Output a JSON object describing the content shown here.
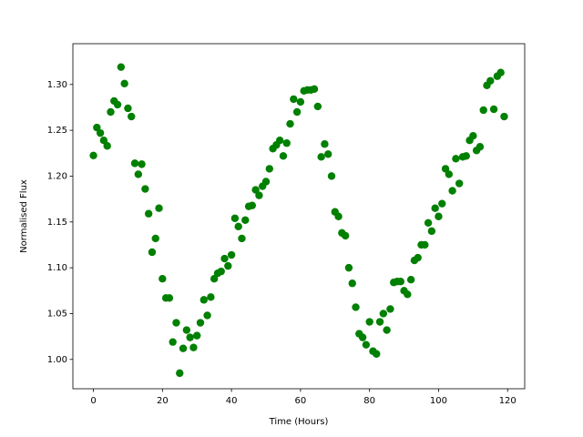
{
  "chart_data": {
    "type": "scatter",
    "x_label": "Time (Hours)",
    "y_label": "Normalised Flux",
    "color": "#008000",
    "grid": false,
    "xlim": [
      -5.95,
      124.95
    ],
    "ylim": [
      0.968,
      1.3445
    ],
    "xticks": [
      0,
      20,
      40,
      60,
      80,
      100,
      120
    ],
    "yticks": [
      {
        "value": 1.0,
        "label": "1.00"
      },
      {
        "value": 1.05,
        "label": "1.05"
      },
      {
        "value": 1.1,
        "label": "1.10"
      },
      {
        "value": 1.15,
        "label": "1.15"
      },
      {
        "value": 1.2,
        "label": "1.20"
      },
      {
        "value": 1.25,
        "label": "1.25"
      },
      {
        "value": 1.3,
        "label": "1.30"
      }
    ],
    "x": [
      0,
      1,
      2,
      3,
      4,
      5,
      6,
      7,
      8,
      9,
      10,
      11,
      12,
      13,
      14,
      15,
      16,
      17,
      18,
      19,
      20,
      21,
      22,
      23,
      24,
      25,
      26,
      27,
      28,
      29,
      30,
      31,
      32,
      33,
      34,
      35,
      36,
      37,
      38,
      39,
      40,
      41,
      42,
      43,
      44,
      45,
      46,
      47,
      48,
      49,
      50,
      51,
      52,
      53,
      54,
      55,
      56,
      57,
      58,
      59,
      60,
      61,
      62,
      63,
      64,
      65,
      66,
      67,
      68,
      69,
      70,
      71,
      72,
      73,
      74,
      75,
      76,
      77,
      78,
      79,
      80,
      81,
      82,
      83,
      84,
      85,
      86,
      87,
      88,
      89,
      90,
      91,
      92,
      93,
      94,
      95,
      96,
      97,
      98,
      99,
      100,
      101,
      102,
      103,
      104,
      105,
      106,
      107,
      108,
      109,
      110,
      111,
      112,
      113,
      114,
      115,
      116,
      117,
      118,
      119
    ],
    "values": [
      1.2225,
      1.253,
      1.247,
      1.239,
      1.233,
      1.27,
      1.282,
      1.278,
      1.319,
      1.301,
      1.274,
      1.265,
      1.214,
      1.202,
      1.213,
      1.186,
      1.159,
      1.117,
      1.132,
      1.165,
      1.088,
      1.067,
      1.067,
      1.019,
      1.04,
      0.985,
      1.012,
      1.032,
      1.024,
      1.013,
      1.026,
      1.04,
      1.065,
      1.048,
      1.068,
      1.088,
      1.094,
      1.096,
      1.11,
      1.102,
      1.114,
      1.154,
      1.145,
      1.132,
      1.152,
      1.167,
      1.168,
      1.185,
      1.179,
      1.189,
      1.194,
      1.208,
      1.23,
      1.234,
      1.239,
      1.222,
      1.236,
      1.257,
      1.284,
      1.27,
      1.281,
      1.293,
      1.294,
      1.294,
      1.295,
      1.276,
      1.221,
      1.235,
      1.224,
      1.2,
      1.161,
      1.156,
      1.138,
      1.135,
      1.1,
      1.083,
      1.057,
      1.028,
      1.024,
      1.016,
      1.041,
      1.009,
      1.006,
      1.041,
      1.05,
      1.032,
      1.055,
      1.084,
      1.085,
      1.085,
      1.075,
      1.071,
      1.087,
      1.108,
      1.111,
      1.125,
      1.125,
      1.149,
      1.14,
      1.165,
      1.156,
      1.17,
      1.208,
      1.202,
      1.184,
      1.219,
      1.192,
      1.221,
      1.222,
      1.239,
      1.244,
      1.228,
      1.232,
      1.272,
      1.299,
      1.304,
      1.273,
      1.309,
      1.313,
      1.265
    ]
  }
}
